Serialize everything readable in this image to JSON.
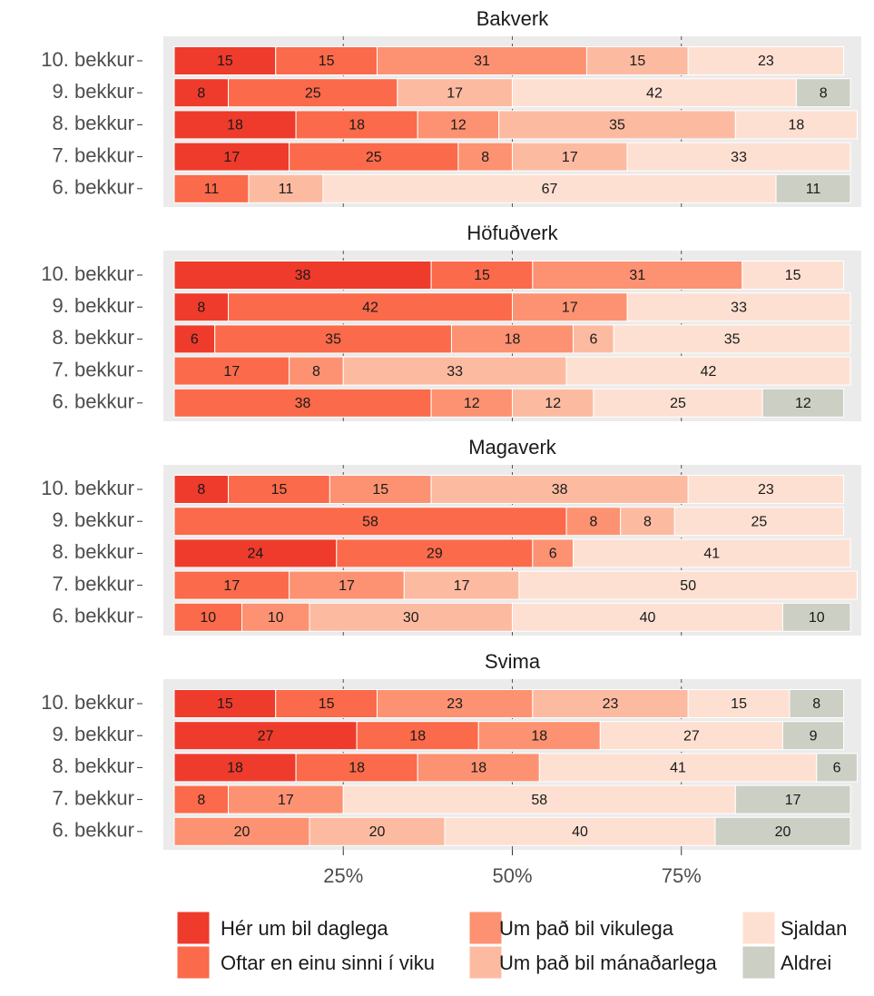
{
  "chart_data": {
    "type": "bar",
    "orientation": "horizontal",
    "stacked": true,
    "categories": [
      "10. bekkur",
      "9. bekkur",
      "8. bekkur",
      "7. bekkur",
      "6. bekkur"
    ],
    "series": [
      {
        "name": "Hér um bil daglega",
        "color": "#ef3b2c"
      },
      {
        "name": "Oftar en einu sinni í viku",
        "color": "#fb6a4a"
      },
      {
        "name": "Um það bil vikulega",
        "color": "#fc9272"
      },
      {
        "name": "Um það bil mánaðarlega",
        "color": "#fcbba1"
      },
      {
        "name": "Sjaldan",
        "color": "#fee0d2"
      },
      {
        "name": "Aldrei",
        "color": "#cccfc3"
      }
    ],
    "facets": [
      {
        "title": "Bakverk",
        "series": [
          {
            "values": [
              15,
              8,
              18,
              17,
              null
            ]
          },
          {
            "values": [
              15,
              25,
              18,
              25,
              11
            ]
          },
          {
            "values": [
              31,
              null,
              12,
              8,
              null
            ]
          },
          {
            "values": [
              15,
              17,
              35,
              17,
              11
            ]
          },
          {
            "values": [
              23,
              42,
              18,
              33,
              67
            ]
          },
          {
            "values": [
              null,
              8,
              null,
              null,
              11
            ]
          }
        ]
      },
      {
        "title": "Höfuðverk",
        "series": [
          {
            "values": [
              38,
              8,
              6,
              null,
              null
            ]
          },
          {
            "values": [
              15,
              42,
              35,
              17,
              38
            ]
          },
          {
            "values": [
              31,
              17,
              18,
              8,
              12
            ]
          },
          {
            "values": [
              null,
              null,
              6,
              33,
              12
            ]
          },
          {
            "values": [
              15,
              33,
              35,
              42,
              25
            ]
          },
          {
            "values": [
              null,
              null,
              null,
              null,
              12
            ]
          }
        ]
      },
      {
        "title": "Magaverk",
        "series": [
          {
            "values": [
              8,
              null,
              24,
              null,
              null
            ]
          },
          {
            "values": [
              15,
              58,
              29,
              17,
              10
            ]
          },
          {
            "values": [
              15,
              8,
              6,
              17,
              10
            ]
          },
          {
            "values": [
              38,
              8,
              null,
              17,
              30
            ]
          },
          {
            "values": [
              23,
              25,
              41,
              50,
              40
            ]
          },
          {
            "values": [
              null,
              null,
              null,
              null,
              10
            ]
          }
        ]
      },
      {
        "title": "Svima",
        "series": [
          {
            "values": [
              15,
              27,
              18,
              null,
              null
            ]
          },
          {
            "values": [
              15,
              18,
              18,
              8,
              null
            ]
          },
          {
            "values": [
              23,
              18,
              18,
              17,
              20
            ]
          },
          {
            "values": [
              23,
              null,
              null,
              null,
              20
            ]
          },
          {
            "values": [
              15,
              27,
              41,
              58,
              40
            ]
          },
          {
            "values": [
              8,
              9,
              6,
              17,
              20
            ]
          }
        ]
      }
    ],
    "xlim": [
      0,
      100
    ],
    "xticks": [
      {
        "value": 25,
        "label": "25%"
      },
      {
        "value": 50,
        "label": "50%"
      },
      {
        "value": 75,
        "label": "75%"
      }
    ],
    "grid": true
  }
}
